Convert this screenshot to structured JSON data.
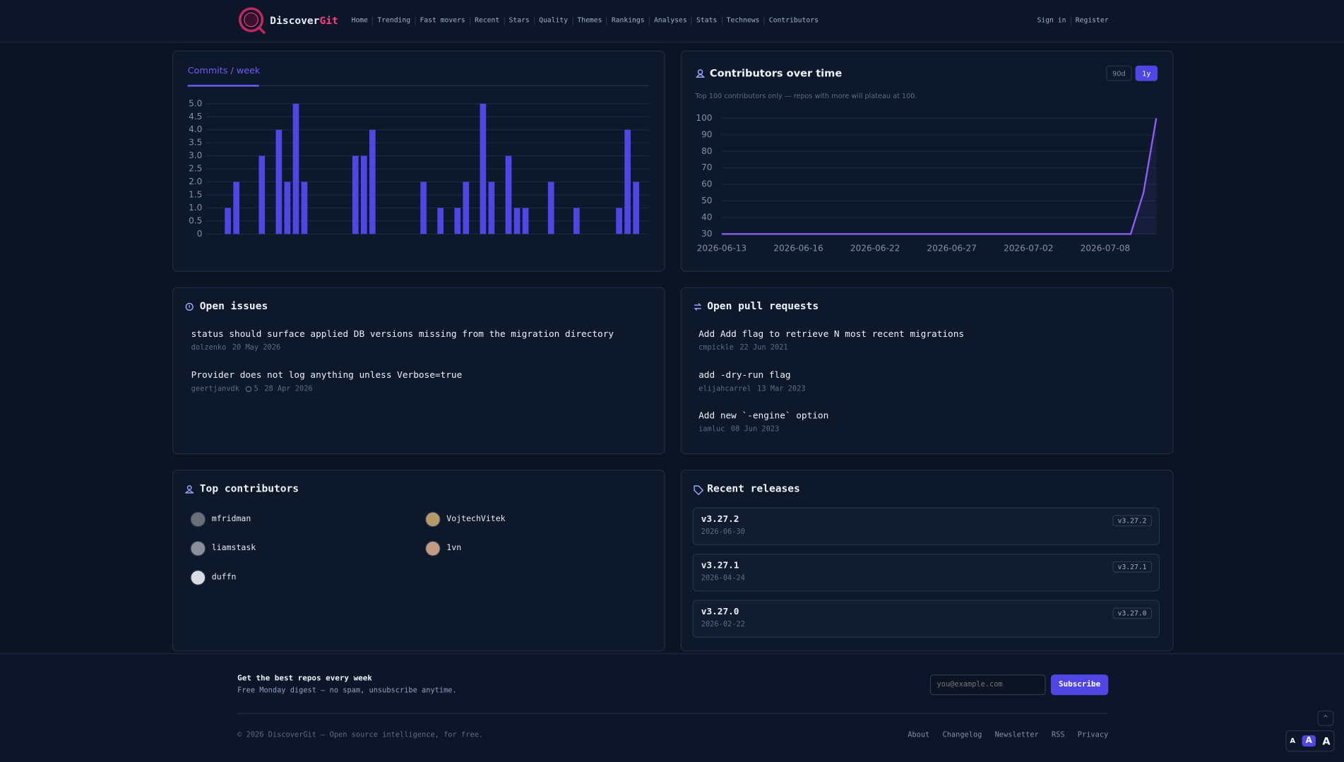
{
  "header": {
    "brand": {
      "first": "Discover",
      "second": "Git"
    },
    "nav": [
      "Home",
      "Trending",
      "Fast movers",
      "Recent",
      "Stars",
      "Quality",
      "Themes",
      "Rankings",
      "Analyses",
      "Stats",
      "Technews",
      "Contributors"
    ],
    "auth": [
      "Sign in",
      "Register"
    ]
  },
  "chart_data": [
    {
      "type": "bar",
      "title": "Commits / week",
      "values": [
        0,
        0,
        1,
        2,
        0,
        0,
        3,
        0,
        4,
        2,
        5,
        2,
        0,
        0,
        0,
        0,
        0,
        3,
        3,
        4,
        0,
        0,
        0,
        0,
        0,
        2,
        0,
        1,
        0,
        1,
        2,
        0,
        5,
        2,
        0,
        3,
        1,
        1,
        0,
        0,
        2,
        0,
        0,
        1,
        0,
        0,
        0,
        0,
        1,
        4,
        2,
        0
      ],
      "color": "#4f46e5",
      "ylim": [
        0,
        5
      ],
      "yticks": [
        0,
        0.5,
        {
          "value": 1,
          "label": "1.0"
        },
        1.5,
        {
          "value": 2,
          "label": "2.0"
        },
        2.5,
        {
          "value": 3,
          "label": "3.0"
        },
        3.5,
        {
          "value": 4,
          "label": "4.0"
        },
        4.5,
        {
          "value": 5,
          "label": "5.0"
        }
      ],
      "grid": true
    },
    {
      "type": "line",
      "title": "Contributors over time",
      "subtitle": "Top 100 contributors only — repos with more will plateau at 100.",
      "ranges": [
        "90d",
        "1y"
      ],
      "categories": [
        "2026-06-13",
        null,
        null,
        null,
        null,
        null,
        "2026-06-16",
        null,
        null,
        null,
        null,
        null,
        "2026-06-22",
        null,
        null,
        null,
        null,
        null,
        "2026-06-27",
        null,
        null,
        null,
        null,
        null,
        "2026-07-02",
        null,
        null,
        null,
        null,
        null,
        "2026-07-08",
        null,
        null,
        null,
        null
      ],
      "values": [
        30,
        30,
        30,
        30,
        30,
        30,
        30,
        30,
        30,
        30,
        30,
        30,
        30,
        30,
        30,
        30,
        30,
        30,
        30,
        30,
        30,
        30,
        30,
        30,
        30,
        30,
        30,
        30,
        30,
        30,
        30,
        30,
        30,
        55,
        100
      ],
      "color": "#8b5cf6",
      "ylim": [
        30,
        100
      ],
      "yticks": [
        30,
        40,
        50,
        60,
        70,
        80,
        90,
        100
      ],
      "grid": true
    }
  ],
  "issues": {
    "title": "Open issues",
    "items": [
      {
        "title": "status should surface applied DB versions missing from the migration directory",
        "author": "dolzenko",
        "date": "20 May 2026"
      },
      {
        "title": "Provider does not log anything unless Verbose=true",
        "author": "geertjanvdk",
        "comments": 5,
        "date": "28 Apr 2026"
      }
    ]
  },
  "pulls": {
    "title": "Open pull requests",
    "items": [
      {
        "title": "Add Add flag to retrieve N most recent migrations",
        "author": "cmpickle",
        "date": "22 Jun 2021"
      },
      {
        "title": "add -dry-run flag",
        "author": "elijahcarrel",
        "date": "13 Mar 2023"
      },
      {
        "title": "Add new `-engine` option",
        "author": "iamluc",
        "date": "08 Jun 2023"
      }
    ]
  },
  "contributors": {
    "title": "Top contributors",
    "people": [
      "mfridman",
      "VojtechVitek",
      "liamstask",
      "1vn",
      "duffn"
    ]
  },
  "releases": {
    "title": "Recent releases",
    "items": [
      {
        "name": "v3.27.2",
        "date": "2026-06-30",
        "tag": "v3.27.2"
      },
      {
        "name": "v3.27.1",
        "date": "2026-04-24",
        "tag": "v3.27.1"
      },
      {
        "name": "v3.27.0",
        "date": "2026-02-22",
        "tag": "v3.27.0"
      }
    ]
  },
  "footer": {
    "newsletter": {
      "title": "Get the best repos every week",
      "subtitle": "Free Monday digest — no spam, unsubscribe anytime.",
      "placeholder": "you@example.com",
      "button": "Subscribe"
    },
    "copyright": "© 2026 DiscoverGit — Open source intelligence, for free.",
    "links": [
      "About",
      "Changelog",
      "Newsletter",
      "RSS",
      "Privacy"
    ],
    "font_sizes": [
      "A",
      "A",
      "A"
    ]
  }
}
